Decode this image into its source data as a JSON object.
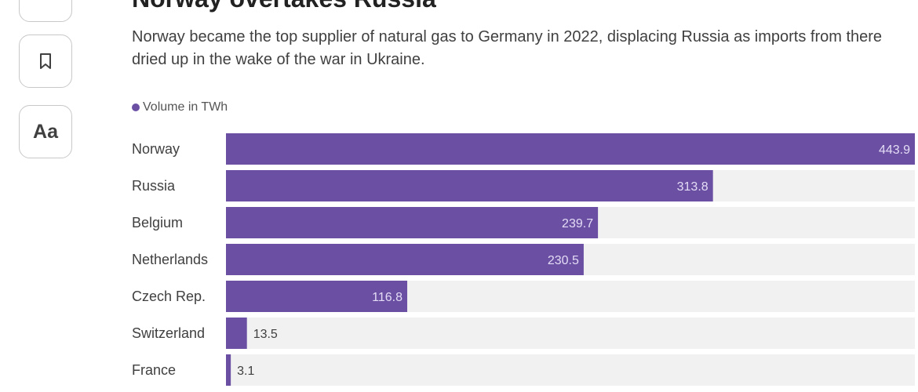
{
  "toolbar": {
    "share_icon": "share-icon",
    "bookmark_icon": "bookmark-icon",
    "text_size_label": "Aa"
  },
  "title": "Norway overtakes Russia",
  "subtitle": "Norway became the top supplier of natural gas to Germany in 2022, displacing Russia as imports from there dried up in the wake of the war in Ukraine.",
  "legend": {
    "label": "Volume in TWh",
    "color": "#6a4fa3"
  },
  "colors": {
    "bar": "#6a4fa3",
    "track": "#f1f1f1",
    "value_inside": "#e4dcf5",
    "value_outside": "#404040"
  },
  "chart_data": {
    "type": "bar",
    "orientation": "horizontal",
    "categories": [
      "Norway",
      "Russia",
      "Belgium",
      "Netherlands",
      "Czech Rep.",
      "Switzerland",
      "France"
    ],
    "series": [
      {
        "name": "Volume in TWh",
        "values": [
          443.9,
          313.8,
          239.7,
          230.5,
          116.8,
          13.5,
          3.1
        ]
      }
    ],
    "xlim": [
      0,
      443.9
    ],
    "title": "Norway overtakes Russia",
    "xlabel": "",
    "ylabel": "",
    "grid": false,
    "legend": "top-left"
  }
}
